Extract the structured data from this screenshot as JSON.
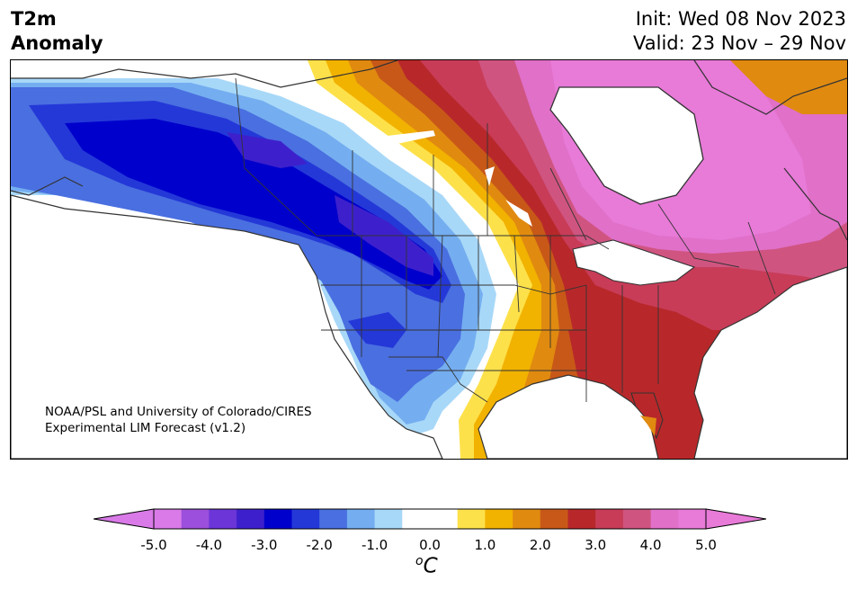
{
  "title": {
    "line1": "T2m",
    "line2": "Anomaly"
  },
  "info": {
    "init": "Init: Wed 08 Nov 2023",
    "valid": "Valid: 23 Nov – 29 Nov"
  },
  "credit": {
    "line1": "NOAA/PSL and University of Colorado/CIRES",
    "line2": "Experimental LIM Forecast (v1.2)"
  },
  "colorbar": {
    "colors": [
      "#d97ae8",
      "#9c4fdc",
      "#6b35d8",
      "#3d20cc",
      "#0000cc",
      "#2438d8",
      "#4a6fe0",
      "#74aef0",
      "#a8d8f8",
      "#ffffff",
      "#ffffff",
      "#fde14a",
      "#f2b200",
      "#e08a10",
      "#c85818",
      "#b8282a",
      "#c83c58",
      "#d05480",
      "#e070c8",
      "#e87ad8"
    ],
    "ticks": [
      "-5.0",
      "-4.0",
      "-3.0",
      "-2.0",
      "-1.0",
      "0.0",
      "1.0",
      "2.0",
      "3.0",
      "4.0",
      "5.0"
    ],
    "unit_base": "C",
    "unit_sup": "o"
  }
}
